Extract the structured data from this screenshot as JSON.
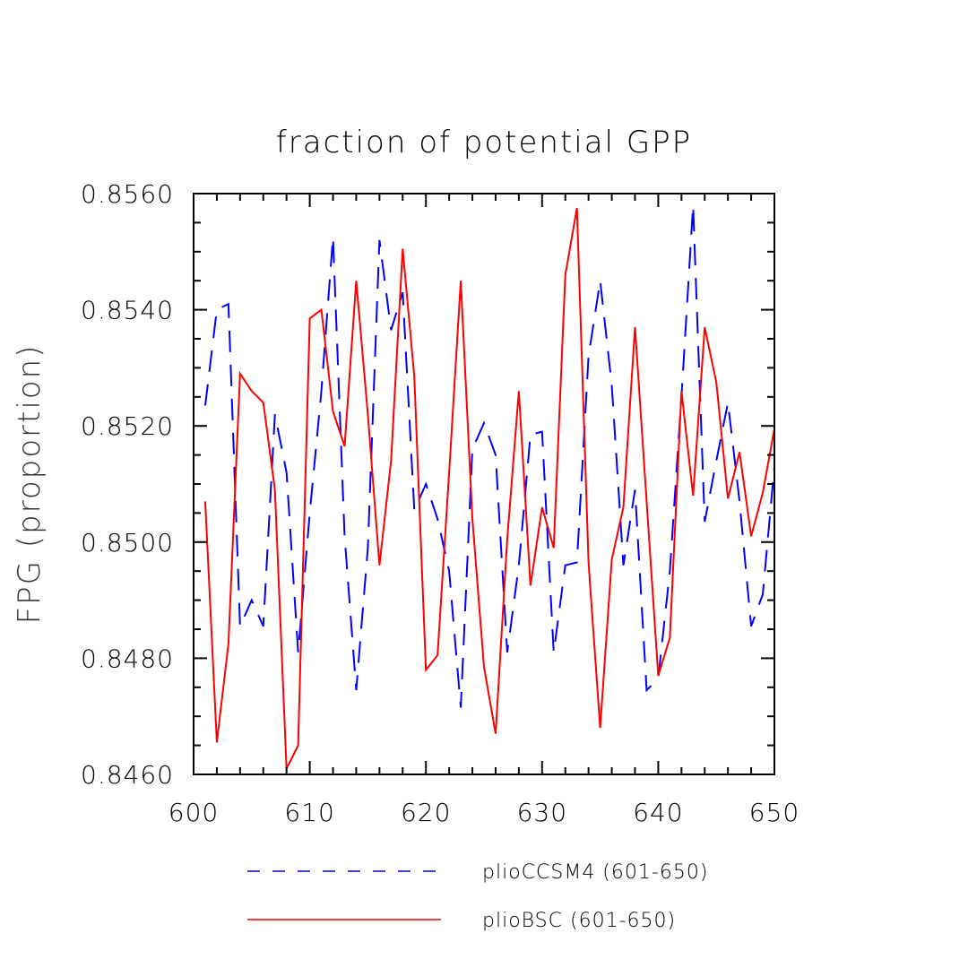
{
  "chart_data": {
    "type": "line",
    "title": "fraction of potential GPP",
    "xlabel": "",
    "ylabel": "FPG  (proportion)",
    "xlim": [
      600,
      650
    ],
    "ylim": [
      0.846,
      0.856
    ],
    "x_ticks": [
      600,
      610,
      620,
      630,
      640,
      650
    ],
    "x_tick_labels": [
      "600",
      "610",
      "620",
      "630",
      "640",
      "650"
    ],
    "y_ticks": [
      0.846,
      0.848,
      0.85,
      0.852,
      0.854,
      0.856
    ],
    "y_tick_labels": [
      "0.8460",
      "0.8480",
      "0.8500",
      "0.8520",
      "0.8540",
      "0.8560"
    ],
    "grid": false,
    "legend_position": "bottom",
    "x": [
      601,
      602,
      603,
      604,
      605,
      606,
      607,
      608,
      609,
      610,
      611,
      612,
      613,
      614,
      615,
      616,
      617,
      618,
      619,
      620,
      621,
      622,
      623,
      624,
      625,
      626,
      627,
      628,
      629,
      630,
      631,
      632,
      633,
      634,
      635,
      636,
      637,
      638,
      639,
      640,
      641,
      642,
      643,
      644,
      645,
      646,
      647,
      648,
      649,
      650
    ],
    "series": [
      {
        "name": "plioCCSM4 (601-650)",
        "color": "#0000ff",
        "dash": "dashed",
        "values": [
          0.85235,
          0.854,
          0.8541,
          0.84855,
          0.849,
          0.84855,
          0.8522,
          0.8512,
          0.8481,
          0.8505,
          0.8526,
          0.85525,
          0.8501,
          0.84745,
          0.8499,
          0.8552,
          0.85365,
          0.8543,
          0.85055,
          0.851,
          0.8504,
          0.8495,
          0.84715,
          0.8516,
          0.85205,
          0.8515,
          0.8481,
          0.8496,
          0.85185,
          0.8519,
          0.8481,
          0.8496,
          0.84965,
          0.8532,
          0.8545,
          0.8527,
          0.8496,
          0.8509,
          0.84745,
          0.84765,
          0.8495,
          0.8525,
          0.8558,
          0.85035,
          0.8514,
          0.8524,
          0.8507,
          0.84855,
          0.8491,
          0.8513
        ]
      },
      {
        "name": "plioBSC (601-650)",
        "color": "#ff0000",
        "dash": "solid",
        "values": [
          0.8507,
          0.84655,
          0.84825,
          0.8529,
          0.8526,
          0.8524,
          0.8509,
          0.8461,
          0.8465,
          0.85385,
          0.854,
          0.85225,
          0.85165,
          0.8545,
          0.8522,
          0.8496,
          0.8514,
          0.85505,
          0.85285,
          0.8478,
          0.84805,
          0.8512,
          0.8545,
          0.8504,
          0.84785,
          0.8467,
          0.85005,
          0.8526,
          0.84925,
          0.8506,
          0.8499,
          0.8546,
          0.85575,
          0.84965,
          0.8468,
          0.8497,
          0.8506,
          0.8537,
          0.8507,
          0.8477,
          0.84835,
          0.8526,
          0.8508,
          0.8537,
          0.85275,
          0.85075,
          0.85155,
          0.8501,
          0.85085,
          0.85195
        ]
      }
    ]
  }
}
